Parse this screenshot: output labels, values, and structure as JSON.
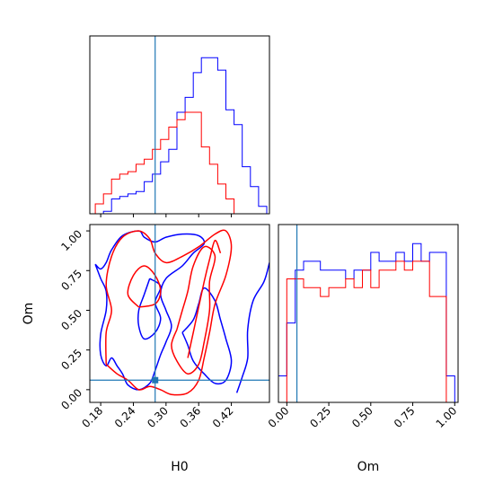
{
  "chart_data": {
    "type": "corner",
    "parameters": [
      "H0",
      "Om"
    ],
    "colors": {
      "blue": "#0000ff",
      "red": "#ff0000",
      "truth": "#1f77b4",
      "frame": "#000000"
    },
    "truth": {
      "H0": 0.28,
      "Om": 0.06
    },
    "h0_panel": {
      "xlim": [
        0.16,
        0.49
      ],
      "ticks": [
        "0.18",
        "0.24",
        "0.30",
        "0.36",
        "0.42"
      ],
      "tick_values": [
        0.18,
        0.24,
        0.3,
        0.36,
        0.42
      ],
      "xlabel": "H0",
      "bin_edges": [
        0.17,
        0.185,
        0.2,
        0.215,
        0.23,
        0.245,
        0.26,
        0.275,
        0.29,
        0.305,
        0.32,
        0.335,
        0.35,
        0.365,
        0.38,
        0.395,
        0.41,
        0.425,
        0.44,
        0.455,
        0.47,
        0.485
      ],
      "series": [
        {
          "name": "",
          "color": "blue",
          "counts": [
            0,
            1,
            6,
            7,
            8,
            9,
            13,
            16,
            21,
            26,
            41,
            47,
            57,
            63,
            63,
            58,
            42,
            36,
            19,
            11,
            3
          ]
        },
        {
          "name": "",
          "color": "red",
          "counts": [
            4,
            8,
            14,
            16,
            17,
            20,
            22,
            26,
            30,
            35,
            38,
            41,
            41,
            27,
            20,
            12,
            6,
            0,
            0,
            0,
            0
          ]
        }
      ]
    },
    "om_panel": {
      "xlim": [
        -0.05,
        1.02
      ],
      "ticks": [
        "0.00",
        "0.25",
        "0.50",
        "0.75",
        "1.00"
      ],
      "tick_values": [
        0.0,
        0.25,
        0.5,
        0.75,
        1.0
      ],
      "xlabel": "Om",
      "bin_edges": [
        -0.05,
        0.0,
        0.05,
        0.1,
        0.15,
        0.2,
        0.25,
        0.3,
        0.35,
        0.4,
        0.45,
        0.5,
        0.55,
        0.6,
        0.65,
        0.7,
        0.75,
        0.8,
        0.85,
        0.9,
        0.95,
        1.0
      ],
      "series": [
        {
          "name": "",
          "color": "blue",
          "counts": [
            3,
            9,
            15,
            16,
            16,
            15,
            15,
            15,
            14,
            15,
            15,
            17,
            16,
            16,
            17,
            16,
            18,
            16,
            17,
            17,
            3
          ]
        },
        {
          "name": "",
          "color": "red",
          "counts": [
            0,
            14,
            14,
            13,
            13,
            12,
            13,
            13,
            14,
            13,
            15,
            13,
            15,
            15,
            16,
            15,
            16,
            16,
            12,
            12,
            0
          ]
        }
      ]
    },
    "joint_panel": {
      "xlim": [
        0.16,
        0.49
      ],
      "ylim": [
        -0.08,
        1.04
      ],
      "x_ticks": [
        "0.18",
        "0.24",
        "0.30",
        "0.36",
        "0.42"
      ],
      "x_tick_values": [
        0.18,
        0.24,
        0.3,
        0.36,
        0.42
      ],
      "y_ticks": [
        "0.00",
        "0.25",
        "0.50",
        "0.75",
        "1.00"
      ],
      "y_tick_values": [
        0.0,
        0.25,
        0.5,
        0.75,
        1.0
      ],
      "xlabel": "H0",
      "ylabel": "Om",
      "contours": [
        {
          "color": "blue",
          "points": [
            [
              0.17,
              0.79
            ],
            [
              0.18,
              0.76
            ],
            [
              0.19,
              0.8
            ],
            [
              0.2,
              0.88
            ],
            [
              0.22,
              0.97
            ],
            [
              0.25,
              1.0
            ],
            [
              0.26,
              0.96
            ],
            [
              0.28,
              0.93
            ],
            [
              0.3,
              0.96
            ],
            [
              0.33,
              0.98
            ],
            [
              0.36,
              0.97
            ],
            [
              0.37,
              0.92
            ],
            [
              0.35,
              0.86
            ],
            [
              0.33,
              0.78
            ],
            [
              0.3,
              0.7
            ],
            [
              0.29,
              0.6
            ],
            [
              0.3,
              0.5
            ],
            [
              0.31,
              0.4
            ],
            [
              0.3,
              0.3
            ],
            [
              0.29,
              0.22
            ],
            [
              0.28,
              0.12
            ],
            [
              0.27,
              0.04
            ],
            [
              0.25,
              0.0
            ],
            [
              0.23,
              0.03
            ],
            [
              0.22,
              0.1
            ],
            [
              0.21,
              0.15
            ],
            [
              0.2,
              0.2
            ],
            [
              0.19,
              0.15
            ],
            [
              0.18,
              0.22
            ],
            [
              0.18,
              0.35
            ],
            [
              0.19,
              0.5
            ],
            [
              0.19,
              0.62
            ],
            [
              0.18,
              0.7
            ],
            [
              0.17,
              0.79
            ]
          ]
        },
        {
          "color": "blue",
          "points": [
            [
              0.27,
              0.7
            ],
            [
              0.26,
              0.6
            ],
            [
              0.25,
              0.5
            ],
            [
              0.25,
              0.4
            ],
            [
              0.26,
              0.32
            ],
            [
              0.28,
              0.36
            ],
            [
              0.29,
              0.45
            ],
            [
              0.28,
              0.55
            ],
            [
              0.29,
              0.65
            ],
            [
              0.27,
              0.7
            ]
          ]
        },
        {
          "color": "blue",
          "points": [
            [
              0.33,
              0.36
            ],
            [
              0.34,
              0.28
            ],
            [
              0.35,
              0.18
            ],
            [
              0.37,
              0.1
            ],
            [
              0.39,
              0.04
            ],
            [
              0.41,
              0.06
            ],
            [
              0.42,
              0.18
            ],
            [
              0.41,
              0.32
            ],
            [
              0.4,
              0.44
            ],
            [
              0.39,
              0.56
            ],
            [
              0.37,
              0.64
            ],
            [
              0.36,
              0.54
            ],
            [
              0.35,
              0.44
            ],
            [
              0.33,
              0.36
            ]
          ]
        },
        {
          "color": "blue",
          "points": [
            [
              0.43,
              -0.02
            ],
            [
              0.44,
              0.08
            ],
            [
              0.45,
              0.2
            ],
            [
              0.45,
              0.38
            ],
            [
              0.46,
              0.56
            ],
            [
              0.48,
              0.68
            ],
            [
              0.49,
              0.8
            ]
          ]
        },
        {
          "color": "red",
          "points": [
            [
              0.19,
              0.16
            ],
            [
              0.19,
              0.36
            ],
            [
              0.2,
              0.5
            ],
            [
              0.19,
              0.66
            ],
            [
              0.2,
              0.84
            ],
            [
              0.22,
              0.96
            ],
            [
              0.25,
              1.0
            ],
            [
              0.27,
              0.95
            ],
            [
              0.28,
              0.86
            ],
            [
              0.3,
              0.8
            ],
            [
              0.33,
              0.84
            ],
            [
              0.36,
              0.9
            ],
            [
              0.39,
              0.98
            ],
            [
              0.41,
              1.0
            ],
            [
              0.42,
              0.9
            ],
            [
              0.41,
              0.72
            ],
            [
              0.39,
              0.54
            ],
            [
              0.38,
              0.36
            ],
            [
              0.37,
              0.2
            ],
            [
              0.36,
              0.06
            ],
            [
              0.34,
              -0.02
            ],
            [
              0.31,
              -0.03
            ],
            [
              0.29,
              0.0
            ],
            [
              0.27,
              0.02
            ],
            [
              0.25,
              0.0
            ],
            [
              0.23,
              0.06
            ],
            [
              0.21,
              0.1
            ],
            [
              0.19,
              0.16
            ]
          ]
        },
        {
          "color": "red",
          "points": [
            [
              0.25,
              0.52
            ],
            [
              0.23,
              0.6
            ],
            [
              0.24,
              0.72
            ],
            [
              0.26,
              0.78
            ],
            [
              0.28,
              0.72
            ],
            [
              0.29,
              0.62
            ],
            [
              0.28,
              0.54
            ],
            [
              0.25,
              0.52
            ]
          ]
        },
        {
          "color": "red",
          "points": [
            [
              0.32,
              0.38
            ],
            [
              0.31,
              0.28
            ],
            [
              0.32,
              0.18
            ],
            [
              0.34,
              0.1
            ],
            [
              0.36,
              0.16
            ],
            [
              0.37,
              0.3
            ],
            [
              0.38,
              0.5
            ],
            [
              0.38,
              0.68
            ],
            [
              0.39,
              0.84
            ],
            [
              0.37,
              0.9
            ],
            [
              0.35,
              0.78
            ],
            [
              0.34,
              0.62
            ],
            [
              0.33,
              0.5
            ],
            [
              0.32,
              0.38
            ]
          ]
        },
        {
          "color": "red",
          "points": [
            [
              0.34,
              0.2
            ],
            [
              0.35,
              0.36
            ],
            [
              0.36,
              0.52
            ],
            [
              0.37,
              0.68
            ],
            [
              0.38,
              0.82
            ],
            [
              0.39,
              0.94
            ],
            [
              0.4,
              0.86
            ]
          ]
        }
      ]
    }
  }
}
